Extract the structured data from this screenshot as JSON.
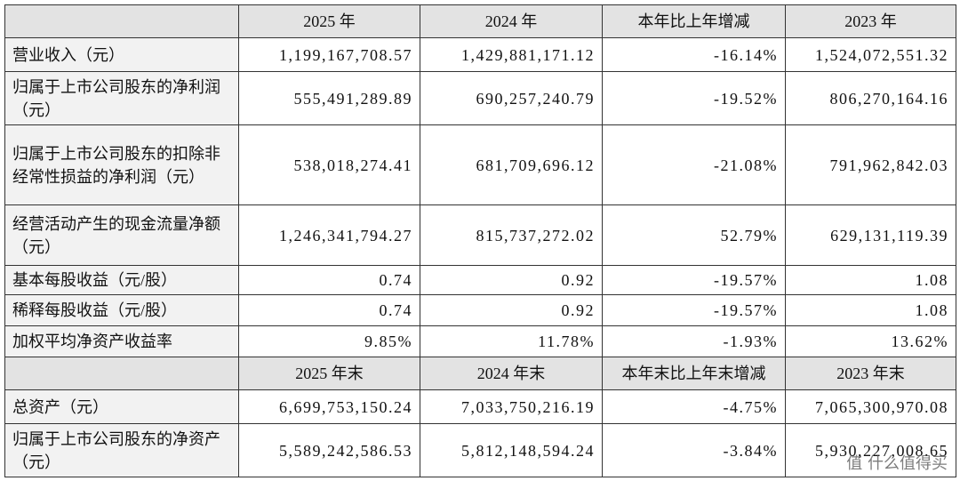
{
  "table": {
    "header": [
      "",
      "2025 年",
      "2024 年",
      "本年比上年增减",
      "2023 年"
    ],
    "rows": [
      [
        "营业收入（元）",
        "1,199,167,708.57",
        "1,429,881,171.12",
        "-16.14%",
        "1,524,072,551.32"
      ],
      [
        "归属于上市公司股东的净利润（元）",
        "555,491,289.89",
        "690,257,240.79",
        "-19.52%",
        "806,270,164.16"
      ],
      [
        "归属于上市公司股东的扣除非经常性损益的净利润（元）",
        "538,018,274.41",
        "681,709,696.12",
        "-21.08%",
        "791,962,842.03"
      ],
      [
        "经营活动产生的现金流量净额（元）",
        "1,246,341,794.27",
        "815,737,272.02",
        "52.79%",
        "629,131,119.39"
      ],
      [
        "基本每股收益（元/股）",
        "0.74",
        "0.92",
        "-19.57%",
        "1.08"
      ],
      [
        "稀释每股收益（元/股）",
        "0.74",
        "0.92",
        "-19.57%",
        "1.08"
      ],
      [
        "加权平均净资产收益率",
        "9.85%",
        "11.78%",
        "-1.93%",
        "13.62%"
      ]
    ],
    "header2": [
      "",
      "2025 年末",
      "2024 年末",
      "本年末比上年末增减",
      "2023 年末"
    ],
    "rows2": [
      [
        "总资产（元）",
        "6,699,753,150.24",
        "7,033,750,216.19",
        "-4.75%",
        "7,065,300,970.08"
      ],
      [
        "归属于上市公司股东的净资产（元）",
        "5,589,242,586.53",
        "5,812,148,594.24",
        "-3.84%",
        "5,930,227,008.65"
      ]
    ]
  },
  "watermark": "值 什么值得买"
}
